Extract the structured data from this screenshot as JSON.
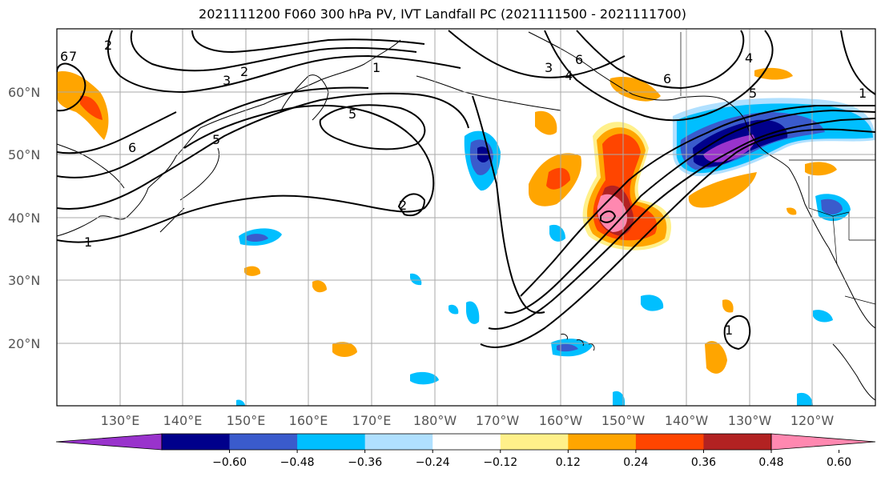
{
  "title": "2021111200 F060 300 hPa PV, IVT Landfall PC (2021111500 - 2021111700)",
  "lat_labels": [
    "60°N",
    "50°N",
    "40°N",
    "30°N",
    "20°N"
  ],
  "lon_labels": [
    "130°E",
    "140°E",
    "150°E",
    "160°E",
    "170°E",
    "180°W",
    "170°W",
    "160°W",
    "150°W",
    "140°W",
    "130°W",
    "120°W"
  ],
  "contour_labels": [
    "1",
    "2",
    "3",
    "5",
    "6",
    "5",
    "2",
    "1",
    "6",
    "4",
    "3",
    "5",
    "1",
    "6",
    "4",
    "1",
    "2",
    "7",
    "6"
  ],
  "colorbar": {
    "colors": [
      "#9933cc",
      "#00008b",
      "#3a5bcc",
      "#00bfff",
      "#b0e0ff",
      "#ffffff",
      "#fff08a",
      "#ffa500",
      "#ff4500",
      "#b22222",
      "#ff88b0"
    ],
    "ticks": [
      "−0.60",
      "−0.48",
      "−0.36",
      "−0.24",
      "−0.12",
      "0.12",
      "0.24",
      "0.36",
      "0.48",
      "0.60"
    ]
  },
  "colors": {
    "grid": "#aaaaaa",
    "contour": "#000000",
    "tick_label": "#555555"
  }
}
